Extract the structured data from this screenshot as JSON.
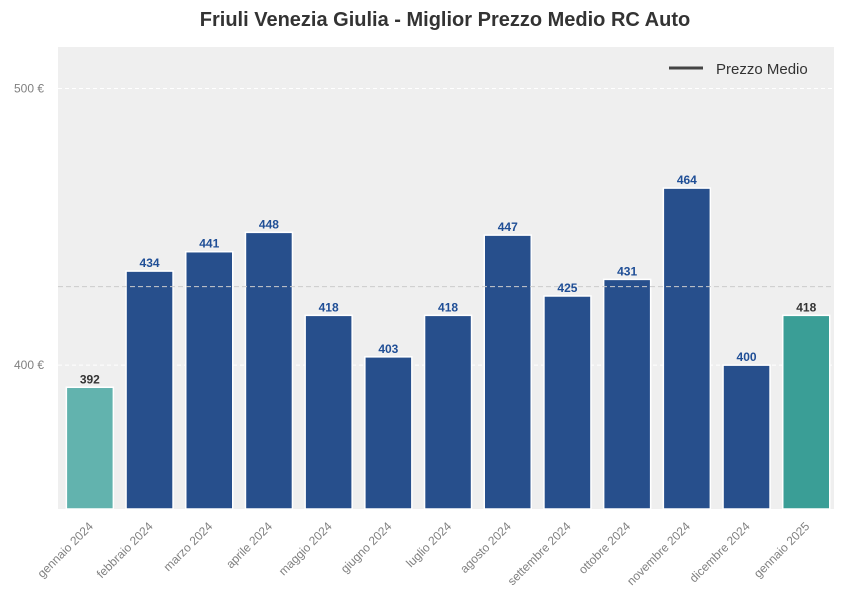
{
  "chart_data": {
    "type": "bar",
    "title": "Friuli Venezia Giulia - Miglior Prezzo Medio RC Auto",
    "categories": [
      "gennaio 2024",
      "febbraio 2024",
      "marzo 2024",
      "aprile 2024",
      "maggio 2024",
      "giugno 2024",
      "luglio 2024",
      "agosto 2024",
      "settembre 2024",
      "ottobre 2024",
      "novembre 2024",
      "dicembre 2024",
      "gennaio 2025"
    ],
    "values": [
      392,
      434,
      441,
      448,
      418,
      403,
      418,
      447,
      425,
      431,
      464,
      400,
      418
    ],
    "data_labels": [
      "392",
      "434",
      "441",
      "448",
      "418",
      "403",
      "418",
      "447",
      "425",
      "431",
      "464",
      "400",
      "418"
    ],
    "bar_colors": [
      "#62b3ae",
      "#274f8c",
      "#274f8c",
      "#274f8c",
      "#274f8c",
      "#274f8c",
      "#274f8c",
      "#274f8c",
      "#274f8c",
      "#274f8c",
      "#274f8c",
      "#274f8c",
      "#3a9e96"
    ],
    "label_colors": [
      "#333333",
      "#1f4e96",
      "#1f4e96",
      "#1f4e96",
      "#1f4e96",
      "#1f4e96",
      "#1f4e96",
      "#1f4e96",
      "#1f4e96",
      "#1f4e96",
      "#1f4e96",
      "#1f4e96",
      "#333333"
    ],
    "ylim": [
      348,
      515
    ],
    "yticks": [
      {
        "value": 400,
        "label": "400 €"
      },
      {
        "value": 500,
        "label": "500 €"
      }
    ],
    "mean_line": {
      "value": 428.38,
      "label": "Prezzo Medio"
    },
    "legend_position": "top-right",
    "grid": true,
    "colors": {
      "plot_background": "#efefef",
      "grid": "#ffffff",
      "mean_line": "#cccccc",
      "legend_line": "#444444"
    }
  }
}
